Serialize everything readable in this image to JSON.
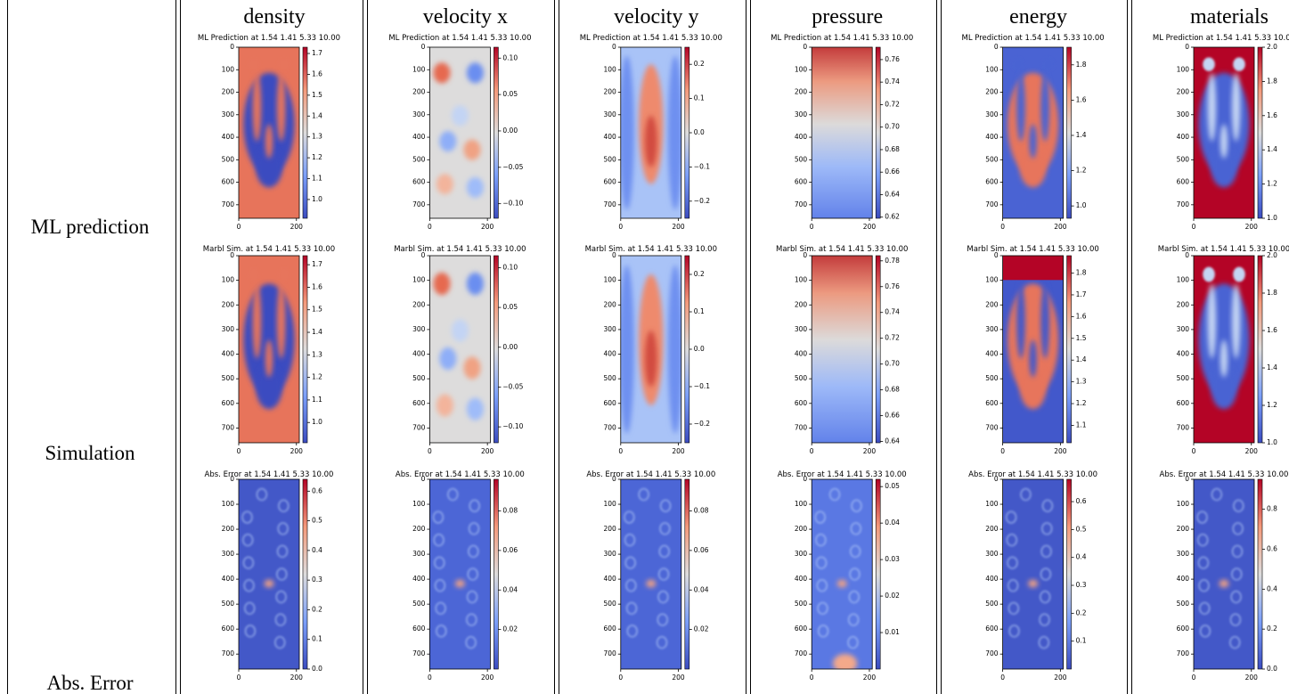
{
  "rows": [
    {
      "label": "ML prediction",
      "panel_title": "ML Prediction at 1.54 1.41 5.33 10.00"
    },
    {
      "label": "Simulation",
      "panel_title": "Marbl Sim. at 1.54 1.41 5.33 10.00"
    },
    {
      "label": "Abs. Error",
      "panel_title": "Abs. Error at 1.54 1.41 5.33 10.00"
    }
  ],
  "axes": {
    "xlim": [
      0,
      210
    ],
    "ylim": [
      0,
      760
    ],
    "xticks": [
      0,
      200
    ],
    "yticks": [
      0,
      100,
      200,
      300,
      400,
      500,
      600,
      700
    ]
  },
  "columns": [
    {
      "title": "density",
      "panels": [
        {
          "clim": [
            0.91,
            1.73
          ],
          "ticks": [
            {
              "value": 1.0,
              "label": "1.0"
            },
            {
              "value": 1.1,
              "label": "1.1"
            },
            {
              "value": 1.2,
              "label": "1.2"
            },
            {
              "value": 1.3,
              "label": "1.3"
            },
            {
              "value": 1.4,
              "label": "1.4"
            },
            {
              "value": 1.5,
              "label": "1.5"
            },
            {
              "value": 1.6,
              "label": "1.6"
            },
            {
              "value": 1.7,
              "label": "1.7"
            }
          ]
        },
        {
          "clim": [
            0.91,
            1.74
          ],
          "ticks": [
            {
              "value": 1.0,
              "label": "1.0"
            },
            {
              "value": 1.1,
              "label": "1.1"
            },
            {
              "value": 1.2,
              "label": "1.2"
            },
            {
              "value": 1.3,
              "label": "1.3"
            },
            {
              "value": 1.4,
              "label": "1.4"
            },
            {
              "value": 1.5,
              "label": "1.5"
            },
            {
              "value": 1.6,
              "label": "1.6"
            },
            {
              "value": 1.7,
              "label": "1.7"
            }
          ]
        },
        {
          "clim": [
            0,
            0.64
          ],
          "ticks": [
            {
              "value": 0,
              "label": "0.0"
            },
            {
              "value": 0.1,
              "label": "0.1"
            },
            {
              "value": 0.2,
              "label": "0.2"
            },
            {
              "value": 0.3,
              "label": "0.3"
            },
            {
              "value": 0.4,
              "label": "0.4"
            },
            {
              "value": 0.5,
              "label": "0.5"
            },
            {
              "value": 0.6,
              "label": "0.6"
            }
          ]
        }
      ]
    },
    {
      "title": "velocity x",
      "panels": [
        {
          "clim": [
            -0.12,
            0.115
          ],
          "ticks": [
            {
              "value": -0.1,
              "label": "−0.10"
            },
            {
              "value": -0.05,
              "label": "−0.05"
            },
            {
              "value": 0,
              "label": "0.00"
            },
            {
              "value": 0.05,
              "label": "0.05"
            },
            {
              "value": 0.1,
              "label": "0.10"
            }
          ]
        },
        {
          "clim": [
            -0.12,
            0.115
          ],
          "ticks": [
            {
              "value": -0.1,
              "label": "−0.10"
            },
            {
              "value": -0.05,
              "label": "−0.05"
            },
            {
              "value": 0,
              "label": "0.00"
            },
            {
              "value": 0.05,
              "label": "0.05"
            },
            {
              "value": 0.1,
              "label": "0.10"
            }
          ]
        },
        {
          "clim": [
            0,
            0.096
          ],
          "ticks": [
            {
              "value": 0.02,
              "label": "0.02"
            },
            {
              "value": 0.04,
              "label": "0.04"
            },
            {
              "value": 0.06,
              "label": "0.06"
            },
            {
              "value": 0.08,
              "label": "0.08"
            }
          ]
        }
      ]
    },
    {
      "title": "velocity y",
      "panels": [
        {
          "clim": [
            -0.25,
            0.25
          ],
          "ticks": [
            {
              "value": -0.2,
              "label": "−0.2"
            },
            {
              "value": -0.1,
              "label": "−0.1"
            },
            {
              "value": 0,
              "label": "0.0"
            },
            {
              "value": 0.1,
              "label": "0.1"
            },
            {
              "value": 0.2,
              "label": "0.2"
            }
          ]
        },
        {
          "clim": [
            -0.25,
            0.25
          ],
          "ticks": [
            {
              "value": -0.2,
              "label": "−0.2"
            },
            {
              "value": -0.1,
              "label": "−0.1"
            },
            {
              "value": 0,
              "label": "0.0"
            },
            {
              "value": 0.1,
              "label": "0.1"
            },
            {
              "value": 0.2,
              "label": "0.2"
            }
          ]
        },
        {
          "clim": [
            0,
            0.096
          ],
          "ticks": [
            {
              "value": 0.02,
              "label": "0.02"
            },
            {
              "value": 0.04,
              "label": "0.04"
            },
            {
              "value": 0.06,
              "label": "0.06"
            },
            {
              "value": 0.08,
              "label": "0.08"
            }
          ]
        }
      ]
    },
    {
      "title": "pressure",
      "panels": [
        {
          "clim": [
            0.619,
            0.771
          ],
          "ticks": [
            {
              "value": 0.62,
              "label": "0.62"
            },
            {
              "value": 0.64,
              "label": "0.64"
            },
            {
              "value": 0.66,
              "label": "0.66"
            },
            {
              "value": 0.68,
              "label": "0.68"
            },
            {
              "value": 0.7,
              "label": "0.70"
            },
            {
              "value": 0.72,
              "label": "0.72"
            },
            {
              "value": 0.74,
              "label": "0.74"
            },
            {
              "value": 0.76,
              "label": "0.76"
            }
          ]
        },
        {
          "clim": [
            0.639,
            0.784
          ],
          "ticks": [
            {
              "value": 0.64,
              "label": "0.64"
            },
            {
              "value": 0.66,
              "label": "0.66"
            },
            {
              "value": 0.68,
              "label": "0.68"
            },
            {
              "value": 0.7,
              "label": "0.70"
            },
            {
              "value": 0.72,
              "label": "0.72"
            },
            {
              "value": 0.74,
              "label": "0.74"
            },
            {
              "value": 0.76,
              "label": "0.76"
            },
            {
              "value": 0.78,
              "label": "0.78"
            }
          ]
        },
        {
          "clim": [
            0,
            0.052
          ],
          "ticks": [
            {
              "value": 0.01,
              "label": "0.01"
            },
            {
              "value": 0.02,
              "label": "0.02"
            },
            {
              "value": 0.03,
              "label": "0.03"
            },
            {
              "value": 0.04,
              "label": "0.04"
            },
            {
              "value": 0.05,
              "label": "0.05"
            }
          ]
        }
      ]
    },
    {
      "title": "energy",
      "panels": [
        {
          "clim": [
            0.93,
            1.9
          ],
          "ticks": [
            {
              "value": 1.0,
              "label": "1.0"
            },
            {
              "value": 1.2,
              "label": "1.2"
            },
            {
              "value": 1.4,
              "label": "1.4"
            },
            {
              "value": 1.6,
              "label": "1.6"
            },
            {
              "value": 1.8,
              "label": "1.8"
            }
          ]
        },
        {
          "clim": [
            1.02,
            1.88
          ],
          "ticks": [
            {
              "value": 1.1,
              "label": "1.1"
            },
            {
              "value": 1.2,
              "label": "1.2"
            },
            {
              "value": 1.3,
              "label": "1.3"
            },
            {
              "value": 1.4,
              "label": "1.4"
            },
            {
              "value": 1.5,
              "label": "1.5"
            },
            {
              "value": 1.6,
              "label": "1.6"
            },
            {
              "value": 1.7,
              "label": "1.7"
            },
            {
              "value": 1.8,
              "label": "1.8"
            }
          ]
        },
        {
          "clim": [
            0,
            0.68
          ],
          "ticks": [
            {
              "value": 0.1,
              "label": "0.1"
            },
            {
              "value": 0.2,
              "label": "0.2"
            },
            {
              "value": 0.3,
              "label": "0.3"
            },
            {
              "value": 0.4,
              "label": "0.4"
            },
            {
              "value": 0.5,
              "label": "0.5"
            },
            {
              "value": 0.6,
              "label": "0.6"
            }
          ]
        }
      ]
    },
    {
      "title": "materials",
      "panels": [
        {
          "clim": [
            1.0,
            2.0
          ],
          "ticks": [
            {
              "value": 1.0,
              "label": "1.0"
            },
            {
              "value": 1.2,
              "label": "1.2"
            },
            {
              "value": 1.4,
              "label": "1.4"
            },
            {
              "value": 1.6,
              "label": "1.6"
            },
            {
              "value": 1.8,
              "label": "1.8"
            },
            {
              "value": 2.0,
              "label": "2.0"
            }
          ]
        },
        {
          "clim": [
            1.0,
            2.0
          ],
          "ticks": [
            {
              "value": 1.0,
              "label": "1.0"
            },
            {
              "value": 1.2,
              "label": "1.2"
            },
            {
              "value": 1.4,
              "label": "1.4"
            },
            {
              "value": 1.6,
              "label": "1.6"
            },
            {
              "value": 1.8,
              "label": "1.8"
            },
            {
              "value": 2.0,
              "label": "2.0"
            }
          ]
        },
        {
          "clim": [
            0,
            0.95
          ],
          "ticks": [
            {
              "value": 0,
              "label": "0.0"
            },
            {
              "value": 0.2,
              "label": "0.2"
            },
            {
              "value": 0.4,
              "label": "0.4"
            },
            {
              "value": 0.6,
              "label": "0.6"
            },
            {
              "value": 0.8,
              "label": "0.8"
            }
          ]
        }
      ]
    }
  ]
}
